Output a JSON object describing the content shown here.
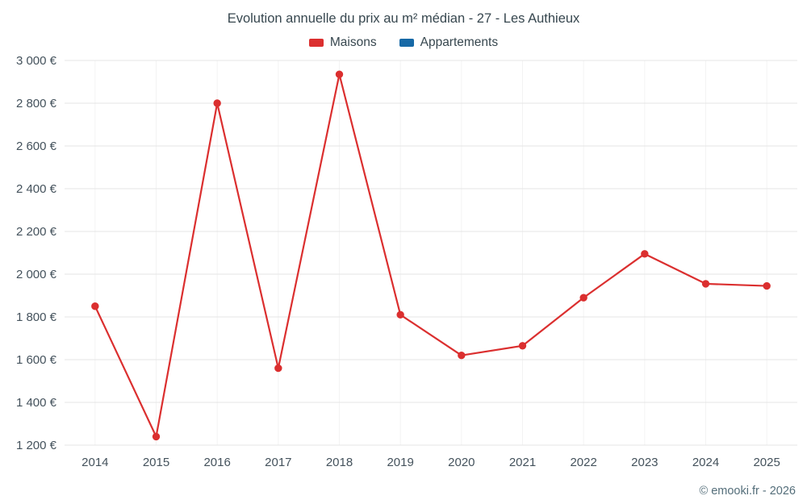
{
  "chart_data": {
    "type": "line",
    "title": "Evolution annuelle du prix au m² médian - 27 - Les Authieux",
    "categories": [
      "2014",
      "2015",
      "2016",
      "2017",
      "2018",
      "2019",
      "2020",
      "2021",
      "2022",
      "2023",
      "2024",
      "2025"
    ],
    "series": [
      {
        "name": "Maisons",
        "color": "#db2f2f",
        "values": [
          1850,
          1240,
          2800,
          1560,
          2935,
          1810,
          1620,
          1665,
          1890,
          2095,
          1955,
          1945
        ]
      },
      {
        "name": "Appartements",
        "color": "#1769a6",
        "values": []
      }
    ],
    "ylim": [
      1200,
      3000
    ],
    "ytick_step": 200,
    "y_suffix": " €",
    "grid": true,
    "legend_position": "top",
    "grid_color": "#e6e6e6",
    "grid_color_vertical": "#f3f3f3"
  },
  "footer": {
    "copyright": "© emooki.fr - 2026"
  }
}
